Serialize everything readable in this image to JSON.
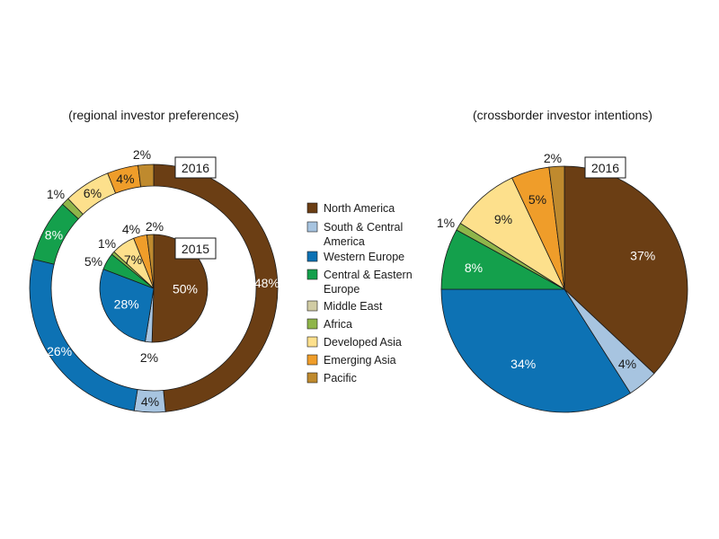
{
  "colors": {
    "North America": "#6b3e14",
    "South & Central America": "#a7c4e0",
    "Western Europe": "#0d72b4",
    "Central & Eastern Europe": "#14a04c",
    "Middle East": "#d1cca4",
    "Africa": "#8fb54a",
    "Developed Asia": "#fde08c",
    "Emerging Asia": "#ef9d2a",
    "Pacific": "#bf8a2e"
  },
  "legend": [
    {
      "lines": [
        "North America"
      ],
      "key": "North America"
    },
    {
      "lines": [
        "South & Central",
        "America"
      ],
      "key": "South & Central America"
    },
    {
      "lines": [
        "Western Europe"
      ],
      "key": "Western Europe"
    },
    {
      "lines": [
        "Central & Eastern",
        "Europe"
      ],
      "key": "Central & Eastern Europe"
    },
    {
      "lines": [
        "Middle East"
      ],
      "key": "Middle East"
    },
    {
      "lines": [
        "Africa"
      ],
      "key": "Africa"
    },
    {
      "lines": [
        "Developed Asia"
      ],
      "key": "Developed Asia"
    },
    {
      "lines": [
        "Emerging Asia"
      ],
      "key": "Emerging Asia"
    },
    {
      "lines": [
        "Pacific"
      ],
      "key": "Pacific"
    }
  ],
  "chart_data": [
    {
      "type": "pie",
      "title": "(regional investor preferences)",
      "series": [
        {
          "name": "2016",
          "ring": "outer",
          "categories": [
            "North America",
            "South & Central America",
            "Western Europe",
            "Central & Eastern Europe",
            "Africa",
            "Developed Asia",
            "Emerging Asia",
            "Pacific"
          ],
          "values": [
            48,
            4,
            26,
            8,
            1,
            6,
            4,
            2
          ],
          "labels": [
            "48%",
            "4%",
            "26%",
            "8%",
            "1%",
            "6%",
            "4%",
            "2%"
          ]
        },
        {
          "name": "2015",
          "ring": "inner",
          "categories": [
            "North America",
            "South & Central America",
            "Western Europe",
            "Central & Eastern Europe",
            "Africa",
            "Developed Asia",
            "Emerging Asia",
            "Pacific"
          ],
          "values": [
            50,
            2,
            28,
            5,
            1,
            7,
            4,
            2
          ],
          "labels": [
            "50%",
            "2%",
            "28%",
            "5%",
            "1%",
            "7%",
            "4%",
            "2%"
          ]
        }
      ]
    },
    {
      "type": "pie",
      "title": "(crossborder investor intentions)",
      "series": [
        {
          "name": "2016",
          "categories": [
            "North America",
            "South & Central America",
            "Western Europe",
            "Central & Eastern Europe",
            "Africa",
            "Developed Asia",
            "Emerging Asia",
            "Pacific"
          ],
          "values": [
            37,
            4,
            34,
            8,
            1,
            9,
            5,
            2
          ],
          "labels": [
            "37%",
            "4%",
            "34%",
            "8%",
            "1%",
            "9%",
            "5%",
            "2%"
          ]
        }
      ]
    }
  ]
}
